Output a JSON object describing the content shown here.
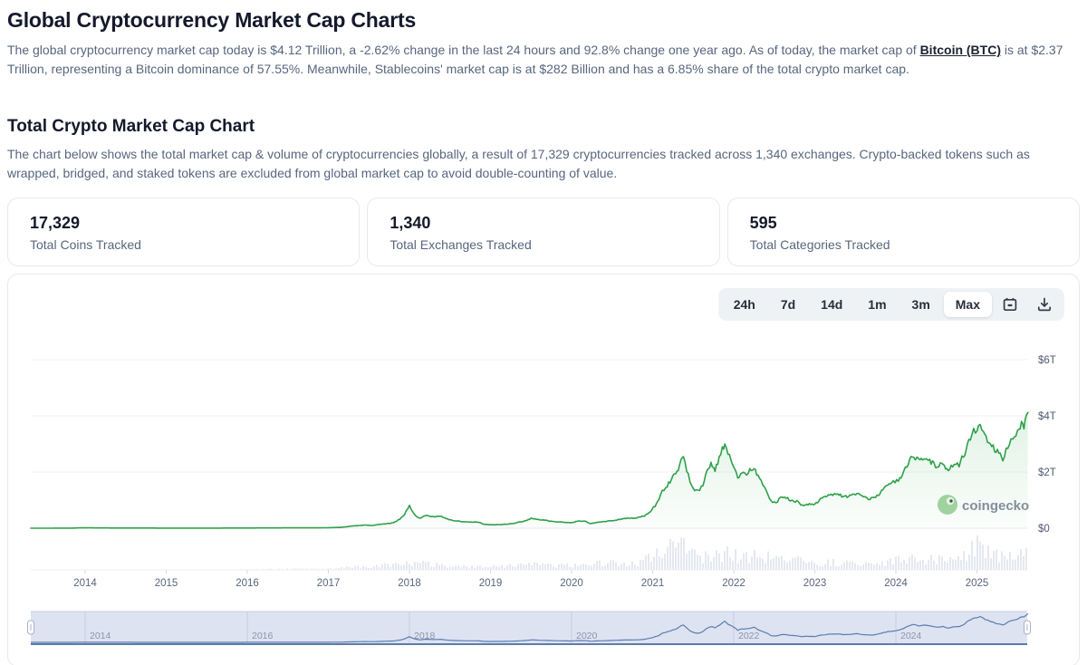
{
  "page": {
    "title": "Global Cryptocurrency Market Cap Charts",
    "intro": {
      "part1": "The global cryptocurrency market cap today is $4.12 Trillion, a -2.62% change in the last 24 hours and 92.8% change one year ago. As of today, the market cap of ",
      "link_text": "Bitcoin (BTC)",
      "part2": " is at $2.37 Trillion, representing a Bitcoin dominance of 57.55%. Meanwhile, Stablecoins' market cap is at $282 Billion and has a 6.85% share of the total crypto market cap."
    },
    "section": {
      "title": "Total Crypto Market Cap Chart",
      "description": "The chart below shows the total market cap & volume of cryptocurrencies globally, a result of 17,329 cryptocurrencies tracked across 1,340 exchanges. Crypto-backed tokens such as wrapped, bridged, and staked tokens are excluded from global market cap to avoid double-counting of value."
    }
  },
  "stats": [
    {
      "value": "17,329",
      "label": "Total Coins Tracked"
    },
    {
      "value": "1,340",
      "label": "Total Exchanges Tracked"
    },
    {
      "value": "595",
      "label": "Total Categories Tracked"
    }
  ],
  "toolbar": {
    "ranges": [
      "24h",
      "7d",
      "14d",
      "1m",
      "3m",
      "Max"
    ],
    "active": "Max",
    "icons": [
      "calendar-icon",
      "download-icon"
    ]
  },
  "watermark": {
    "label": "coingecko"
  },
  "colors": {
    "line_green": "#2fa04a",
    "area_green": "#34a853",
    "volume_bar": "#e5e8f0",
    "grid": "#f0f1f4",
    "axis_text": "#58667e",
    "nav_bg": "#dde3f1",
    "nav_grid": "#c6cddf",
    "nav_line": "#5d7cae",
    "nav_label": "#8d95a9",
    "watermark_text": "#7c8596",
    "gecko_green": "#9ed19b"
  },
  "chart_data": {
    "type": "area",
    "title": "Total Crypto Market Cap",
    "unit": "USD Trillions",
    "xlim": [
      2013.33,
      2025.63
    ],
    "ylim": [
      0,
      7.2
    ],
    "grid": true,
    "legend_position": "none",
    "y_ticks": [
      {
        "label": "$0",
        "value": 0
      },
      {
        "label": "$2T",
        "value": 2
      },
      {
        "label": "$4T",
        "value": 4
      },
      {
        "label": "$6T",
        "value": 6
      }
    ],
    "x_ticks": [
      2014,
      2015,
      2016,
      2017,
      2018,
      2019,
      2020,
      2021,
      2022,
      2023,
      2024,
      2025
    ],
    "series": [
      {
        "name": "Market Cap",
        "points": [
          [
            2013.33,
            0.001
          ],
          [
            2013.6,
            0.0015
          ],
          [
            2013.85,
            0.004
          ],
          [
            2013.95,
            0.015
          ],
          [
            2014.05,
            0.012
          ],
          [
            2014.2,
            0.009
          ],
          [
            2014.4,
            0.007
          ],
          [
            2014.7,
            0.006
          ],
          [
            2015.0,
            0.004
          ],
          [
            2015.3,
            0.0045
          ],
          [
            2015.6,
            0.004
          ],
          [
            2015.9,
            0.006
          ],
          [
            2016.1,
            0.008
          ],
          [
            2016.4,
            0.011
          ],
          [
            2016.6,
            0.013
          ],
          [
            2016.9,
            0.014
          ],
          [
            2017.0,
            0.018
          ],
          [
            2017.15,
            0.028
          ],
          [
            2017.3,
            0.08
          ],
          [
            2017.45,
            0.11
          ],
          [
            2017.55,
            0.1
          ],
          [
            2017.7,
            0.16
          ],
          [
            2017.8,
            0.19
          ],
          [
            2017.88,
            0.32
          ],
          [
            2017.94,
            0.5
          ],
          [
            2018.0,
            0.82
          ],
          [
            2018.04,
            0.6
          ],
          [
            2018.08,
            0.45
          ],
          [
            2018.13,
            0.35
          ],
          [
            2018.2,
            0.46
          ],
          [
            2018.3,
            0.4
          ],
          [
            2018.38,
            0.44
          ],
          [
            2018.5,
            0.29
          ],
          [
            2018.6,
            0.25
          ],
          [
            2018.72,
            0.22
          ],
          [
            2018.85,
            0.21
          ],
          [
            2018.92,
            0.14
          ],
          [
            2019.0,
            0.12
          ],
          [
            2019.15,
            0.13
          ],
          [
            2019.3,
            0.18
          ],
          [
            2019.45,
            0.28
          ],
          [
            2019.5,
            0.35
          ],
          [
            2019.6,
            0.31
          ],
          [
            2019.72,
            0.26
          ],
          [
            2019.85,
            0.22
          ],
          [
            2020.0,
            0.2
          ],
          [
            2020.1,
            0.26
          ],
          [
            2020.18,
            0.24
          ],
          [
            2020.23,
            0.16
          ],
          [
            2020.35,
            0.22
          ],
          [
            2020.5,
            0.27
          ],
          [
            2020.65,
            0.34
          ],
          [
            2020.8,
            0.36
          ],
          [
            2020.9,
            0.44
          ],
          [
            2020.97,
            0.6
          ],
          [
            2021.03,
            0.8
          ],
          [
            2021.08,
            1.0
          ],
          [
            2021.12,
            1.35
          ],
          [
            2021.18,
            1.5
          ],
          [
            2021.25,
            1.8
          ],
          [
            2021.3,
            2.0
          ],
          [
            2021.35,
            2.45
          ],
          [
            2021.38,
            2.55
          ],
          [
            2021.42,
            2.1
          ],
          [
            2021.46,
            1.65
          ],
          [
            2021.52,
            1.35
          ],
          [
            2021.56,
            1.3
          ],
          [
            2021.62,
            1.55
          ],
          [
            2021.67,
            2.05
          ],
          [
            2021.72,
            2.25
          ],
          [
            2021.77,
            2.1
          ],
          [
            2021.82,
            2.45
          ],
          [
            2021.86,
            2.85
          ],
          [
            2021.89,
            3.02
          ],
          [
            2021.93,
            2.65
          ],
          [
            2022.0,
            2.2
          ],
          [
            2022.05,
            1.75
          ],
          [
            2022.1,
            1.9
          ],
          [
            2022.18,
            2.0
          ],
          [
            2022.25,
            2.15
          ],
          [
            2022.3,
            1.85
          ],
          [
            2022.36,
            1.55
          ],
          [
            2022.42,
            1.25
          ],
          [
            2022.46,
            0.95
          ],
          [
            2022.52,
            0.9
          ],
          [
            2022.58,
            1.08
          ],
          [
            2022.63,
            1.12
          ],
          [
            2022.7,
            0.98
          ],
          [
            2022.78,
            0.96
          ],
          [
            2022.83,
            0.82
          ],
          [
            2022.9,
            0.86
          ],
          [
            2023.0,
            0.84
          ],
          [
            2023.07,
            1.02
          ],
          [
            2023.13,
            1.1
          ],
          [
            2023.2,
            1.18
          ],
          [
            2023.28,
            1.24
          ],
          [
            2023.35,
            1.12
          ],
          [
            2023.45,
            1.16
          ],
          [
            2023.52,
            1.24
          ],
          [
            2023.6,
            1.12
          ],
          [
            2023.68,
            1.04
          ],
          [
            2023.75,
            1.1
          ],
          [
            2023.82,
            1.32
          ],
          [
            2023.9,
            1.55
          ],
          [
            2023.97,
            1.65
          ],
          [
            2024.03,
            1.72
          ],
          [
            2024.1,
            2.0
          ],
          [
            2024.17,
            2.45
          ],
          [
            2024.22,
            2.6
          ],
          [
            2024.28,
            2.4
          ],
          [
            2024.33,
            2.5
          ],
          [
            2024.4,
            2.38
          ],
          [
            2024.47,
            2.28
          ],
          [
            2024.53,
            2.2
          ],
          [
            2024.58,
            2.32
          ],
          [
            2024.63,
            2.08
          ],
          [
            2024.7,
            2.18
          ],
          [
            2024.78,
            2.28
          ],
          [
            2024.85,
            2.65
          ],
          [
            2024.9,
            3.15
          ],
          [
            2024.96,
            3.55
          ],
          [
            2025.0,
            3.45
          ],
          [
            2025.04,
            3.68
          ],
          [
            2025.08,
            3.4
          ],
          [
            2025.13,
            3.15
          ],
          [
            2025.2,
            2.85
          ],
          [
            2025.27,
            2.65
          ],
          [
            2025.32,
            2.5
          ],
          [
            2025.38,
            2.9
          ],
          [
            2025.44,
            3.15
          ],
          [
            2025.5,
            3.4
          ],
          [
            2025.55,
            3.75
          ],
          [
            2025.58,
            3.6
          ],
          [
            2025.61,
            3.95
          ],
          [
            2025.63,
            4.12
          ]
        ]
      }
    ],
    "volume": {
      "name": "24h Volume",
      "envelope": [
        [
          2013.33,
          0.01
        ],
        [
          2016.0,
          0.02
        ],
        [
          2017.0,
          0.06
        ],
        [
          2017.9,
          0.22
        ],
        [
          2018.02,
          0.32
        ],
        [
          2018.3,
          0.2
        ],
        [
          2018.6,
          0.12
        ],
        [
          2019.0,
          0.12
        ],
        [
          2019.5,
          0.22
        ],
        [
          2020.0,
          0.16
        ],
        [
          2020.3,
          0.28
        ],
        [
          2020.8,
          0.24
        ],
        [
          2021.0,
          0.55
        ],
        [
          2021.2,
          0.85
        ],
        [
          2021.4,
          1.0
        ],
        [
          2021.6,
          0.55
        ],
        [
          2021.9,
          0.65
        ],
        [
          2022.1,
          0.5
        ],
        [
          2022.5,
          0.55
        ],
        [
          2022.8,
          0.38
        ],
        [
          2023.0,
          0.28
        ],
        [
          2023.3,
          0.3
        ],
        [
          2023.6,
          0.22
        ],
        [
          2023.95,
          0.32
        ],
        [
          2024.2,
          0.55
        ],
        [
          2024.5,
          0.38
        ],
        [
          2024.8,
          0.5
        ],
        [
          2024.95,
          1.0
        ],
        [
          2025.1,
          0.75
        ],
        [
          2025.3,
          0.5
        ],
        [
          2025.55,
          0.6
        ],
        [
          2025.63,
          0.55
        ]
      ]
    },
    "navigator": {
      "labels": [
        2014,
        2016,
        2018,
        2020,
        2022,
        2024
      ]
    }
  }
}
